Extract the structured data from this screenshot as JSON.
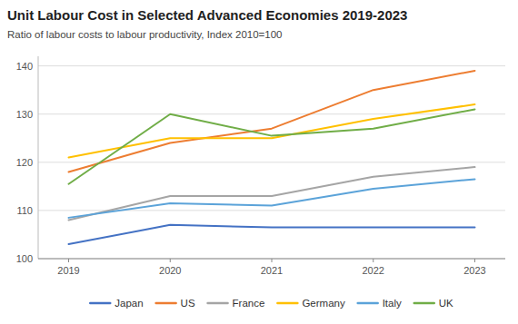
{
  "chart_data": {
    "type": "line",
    "title": "Unit Labour Cost in Selected Advanced Economies 2019-2023",
    "subtitle": "Ratio of labour costs to labour productivity, Index 2010=100",
    "x": [
      2019,
      2020,
      2021,
      2022,
      2023
    ],
    "xlim": [
      2018.7,
      2023.3
    ],
    "xticks": [
      2019,
      2020,
      2021,
      2022,
      2023
    ],
    "ylim": [
      100,
      142
    ],
    "yticks": [
      100,
      110,
      120,
      130,
      140
    ],
    "grid": true,
    "legend": "bottom",
    "series": [
      {
        "name": "Japan",
        "color": "#4472c4",
        "values": [
          103,
          107,
          106.5,
          106.5,
          106.5
        ]
      },
      {
        "name": "US",
        "color": "#ed7d31",
        "values": [
          118,
          124,
          127,
          135,
          139
        ]
      },
      {
        "name": "France",
        "color": "#a5a5a5",
        "values": [
          108,
          113,
          113,
          117,
          119
        ]
      },
      {
        "name": "Germany",
        "color": "#ffc000",
        "values": [
          121,
          125,
          125,
          129,
          132
        ]
      },
      {
        "name": "Italy",
        "color": "#5ba3d9",
        "values": [
          108.5,
          111.5,
          111,
          114.5,
          116.5
        ]
      },
      {
        "name": "UK",
        "color": "#70ad47",
        "values": [
          115.5,
          130,
          125.5,
          127,
          131
        ]
      }
    ]
  }
}
